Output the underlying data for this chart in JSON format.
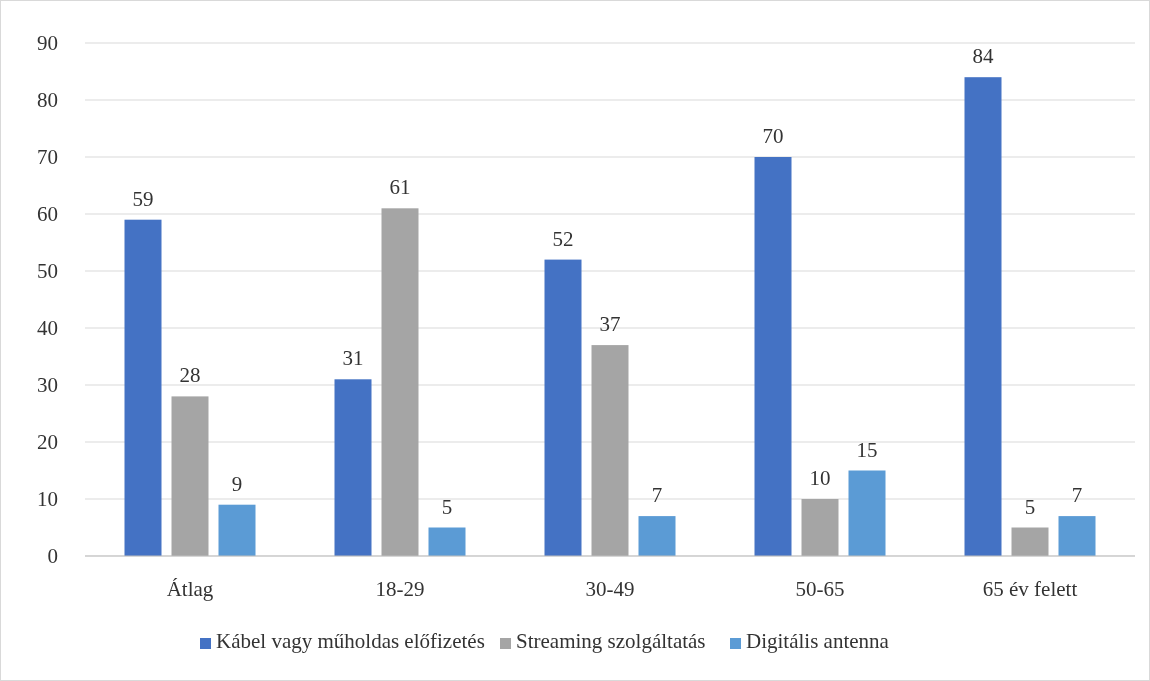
{
  "chart_data": {
    "type": "bar",
    "categories": [
      "Átlag",
      "18-29",
      "30-49",
      "50-65",
      "65 év felett"
    ],
    "series": [
      {
        "name": "Kábel vagy műholdas előfizetés",
        "color": "#4472c4",
        "values": [
          59,
          31,
          52,
          70,
          84
        ]
      },
      {
        "name": "Streaming szolgáltatás",
        "color": "#a5a5a5",
        "values": [
          28,
          61,
          37,
          10,
          5
        ]
      },
      {
        "name": "Digitális antenna",
        "color": "#5b9bd5",
        "values": [
          9,
          5,
          7,
          15,
          7
        ]
      }
    ],
    "ylim": [
      0,
      90
    ],
    "yticks": [
      0,
      10,
      20,
      30,
      40,
      50,
      60,
      70,
      80,
      90
    ],
    "grid": "y",
    "legend": "bottom",
    "data_labels": true
  }
}
